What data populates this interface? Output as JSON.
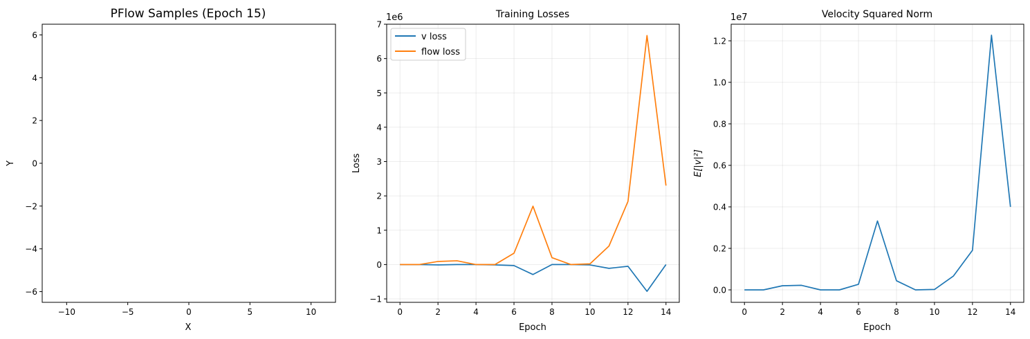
{
  "chart_data": [
    {
      "type": "scatter",
      "title": "PFlow Samples (Epoch 15)",
      "xlabel": "X",
      "ylabel": "Y",
      "xlim": [
        -12,
        12
      ],
      "ylim": [
        -6.5,
        6.5
      ],
      "xticks": [
        -10,
        -5,
        0,
        5,
        10
      ],
      "yticks": [
        -6,
        -4,
        -2,
        0,
        2,
        4,
        6
      ],
      "xtick_labels": [
        "−10",
        "−5",
        "0",
        "5",
        "10"
      ],
      "ytick_labels": [
        "−6",
        "−4",
        "−2",
        "0",
        "2",
        "4",
        "6"
      ],
      "grid": false,
      "series": []
    },
    {
      "type": "line",
      "title": "Training Losses",
      "xlabel": "Epoch",
      "ylabel": "Loss",
      "offset_text": "1e6",
      "scale": 1000000,
      "xlim": [
        -0.7,
        14.7
      ],
      "ylim": [
        -1.1,
        7.0
      ],
      "xticks": [
        0,
        2,
        4,
        6,
        8,
        10,
        12,
        14
      ],
      "yticks": [
        -1,
        0,
        1,
        2,
        3,
        4,
        5,
        6,
        7
      ],
      "xtick_labels": [
        "0",
        "2",
        "4",
        "6",
        "8",
        "10",
        "12",
        "14"
      ],
      "ytick_labels": [
        "−1",
        "0",
        "1",
        "2",
        "3",
        "4",
        "5",
        "6",
        "7"
      ],
      "grid": true,
      "legend": "upper left",
      "x": [
        0,
        1,
        2,
        3,
        4,
        5,
        6,
        7,
        8,
        9,
        10,
        11,
        12,
        13,
        14
      ],
      "series": [
        {
          "name": "v loss",
          "color": "#1f77b4",
          "values": [
            0,
            0,
            -0.01,
            0,
            0,
            -0.01,
            -0.03,
            -0.29,
            0,
            0,
            -0.01,
            -0.11,
            -0.05,
            -0.78,
            0
          ]
        },
        {
          "name": "flow loss",
          "color": "#ff7f0e",
          "values": [
            0,
            0,
            0.09,
            0.11,
            0,
            0,
            0.33,
            1.7,
            0.2,
            0,
            0.02,
            0.54,
            1.84,
            6.67,
            2.3
          ]
        }
      ]
    },
    {
      "type": "line",
      "title": "Velocity Squared Norm",
      "xlabel": "Epoch",
      "ylabel": "E[|v|²]",
      "offset_text": "1e7",
      "scale": 10000000,
      "xlim": [
        -0.7,
        14.7
      ],
      "ylim": [
        -0.06,
        1.28
      ],
      "xticks": [
        0,
        2,
        4,
        6,
        8,
        10,
        12,
        14
      ],
      "yticks": [
        0,
        0.2,
        0.4,
        0.6,
        0.8,
        1.0,
        1.2
      ],
      "xtick_labels": [
        "0",
        "2",
        "4",
        "6",
        "8",
        "10",
        "12",
        "14"
      ],
      "ytick_labels": [
        "0.0",
        "0.2",
        "0.4",
        "0.6",
        "0.8",
        "1.0",
        "1.2"
      ],
      "grid": true,
      "x": [
        0,
        1,
        2,
        3,
        4,
        5,
        6,
        7,
        8,
        9,
        10,
        11,
        12,
        13,
        14
      ],
      "series": [
        {
          "color": "#1f77b4",
          "values": [
            0,
            0,
            0.02,
            0.022,
            0,
            0,
            0.027,
            0.332,
            0.044,
            0,
            0.002,
            0.067,
            0.191,
            1.227,
            0.4
          ]
        }
      ]
    }
  ]
}
